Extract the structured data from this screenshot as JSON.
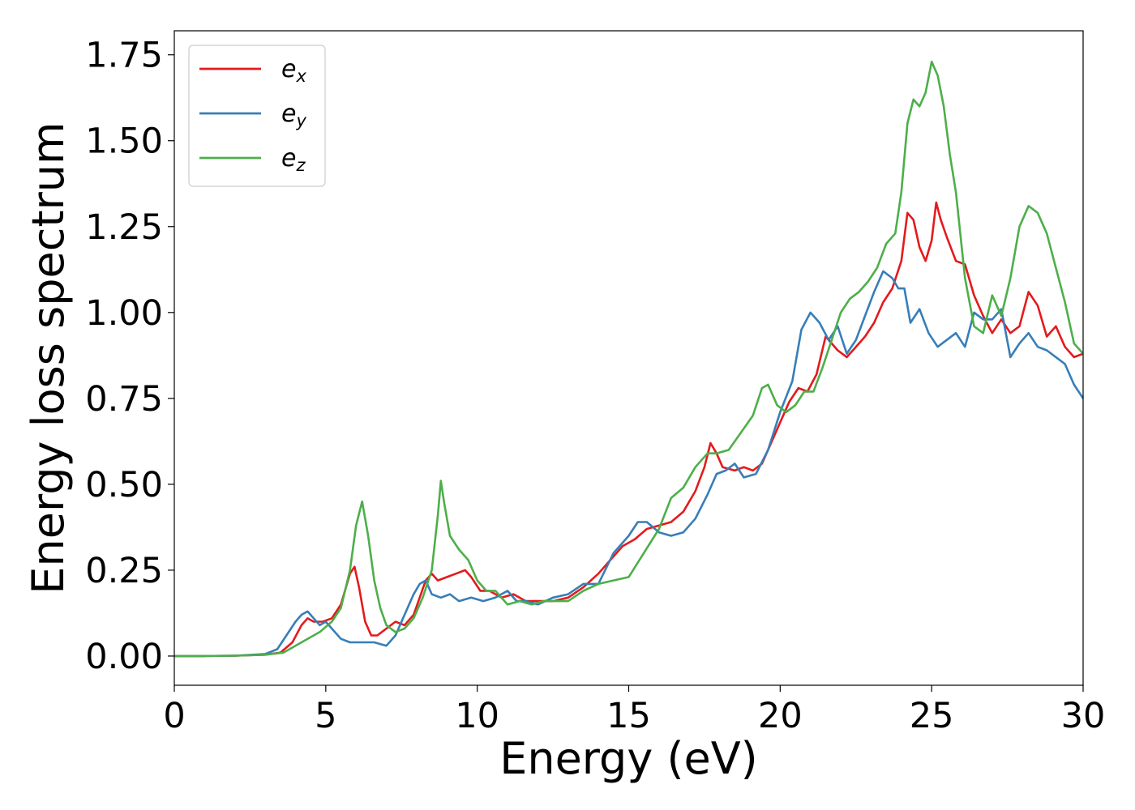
{
  "chart_data": {
    "type": "line",
    "title": "",
    "xlabel": "Energy (eV)",
    "ylabel": "Energy loss spectrum",
    "xlim": [
      0,
      30
    ],
    "ylim": [
      -0.085,
      1.82
    ],
    "xticks": [
      0,
      5,
      10,
      15,
      20,
      25,
      30
    ],
    "xtick_labels": [
      "0",
      "5",
      "10",
      "15",
      "20",
      "25",
      "30"
    ],
    "yticks": [
      0,
      0.25,
      0.5,
      0.75,
      1.0,
      1.25,
      1.5,
      1.75
    ],
    "ytick_labels": [
      "0.00",
      "0.25",
      "0.50",
      "0.75",
      "1.00",
      "1.25",
      "1.50",
      "1.75"
    ],
    "grid": false,
    "legend_position": "top-left",
    "series": [
      {
        "name": "e",
        "subscript": "x",
        "color": "#e41a1c",
        "x": [
          0,
          1,
          2,
          3,
          3.5,
          3.9,
          4.2,
          4.4,
          4.6,
          4.9,
          5.2,
          5.5,
          5.8,
          5.95,
          6.1,
          6.3,
          6.5,
          6.7,
          7.0,
          7.3,
          7.6,
          7.9,
          8.1,
          8.3,
          8.5,
          8.7,
          9.0,
          9.3,
          9.6,
          9.8,
          10.1,
          10.4,
          10.8,
          11.2,
          11.6,
          12.0,
          12.5,
          13.0,
          13.5,
          14.0,
          14.5,
          14.8,
          15.2,
          15.6,
          16.0,
          16.4,
          16.8,
          17.2,
          17.5,
          17.7,
          17.9,
          18.1,
          18.5,
          18.8,
          19.1,
          19.4,
          19.7,
          20.0,
          20.3,
          20.6,
          20.9,
          21.2,
          21.5,
          21.7,
          21.9,
          22.2,
          22.5,
          22.8,
          23.1,
          23.4,
          23.7,
          24.0,
          24.2,
          24.4,
          24.6,
          24.8,
          25.0,
          25.15,
          25.3,
          25.5,
          25.8,
          26.1,
          26.4,
          26.7,
          27.0,
          27.3,
          27.6,
          27.9,
          28.2,
          28.5,
          28.8,
          29.1,
          29.4,
          29.7,
          30.0
        ],
        "values": [
          0,
          0,
          0.001,
          0.004,
          0.01,
          0.04,
          0.09,
          0.11,
          0.1,
          0.1,
          0.11,
          0.15,
          0.24,
          0.26,
          0.2,
          0.1,
          0.06,
          0.06,
          0.08,
          0.1,
          0.09,
          0.12,
          0.17,
          0.22,
          0.24,
          0.22,
          0.23,
          0.24,
          0.25,
          0.23,
          0.19,
          0.19,
          0.17,
          0.18,
          0.16,
          0.16,
          0.16,
          0.17,
          0.2,
          0.24,
          0.29,
          0.32,
          0.34,
          0.37,
          0.38,
          0.39,
          0.42,
          0.48,
          0.55,
          0.62,
          0.59,
          0.55,
          0.54,
          0.55,
          0.54,
          0.56,
          0.62,
          0.68,
          0.74,
          0.78,
          0.77,
          0.82,
          0.93,
          0.91,
          0.89,
          0.87,
          0.9,
          0.93,
          0.97,
          1.03,
          1.07,
          1.15,
          1.29,
          1.27,
          1.19,
          1.15,
          1.21,
          1.32,
          1.27,
          1.22,
          1.15,
          1.14,
          1.05,
          0.99,
          0.94,
          0.98,
          0.94,
          0.96,
          1.06,
          1.02,
          0.93,
          0.96,
          0.9,
          0.87,
          0.88
        ]
      },
      {
        "name": "e",
        "subscript": "y",
        "color": "#377eb8",
        "x": [
          0,
          1,
          2,
          3,
          3.4,
          3.7,
          4.0,
          4.2,
          4.4,
          4.6,
          4.8,
          5.0,
          5.2,
          5.5,
          5.8,
          6.2,
          6.6,
          7.0,
          7.3,
          7.6,
          7.9,
          8.1,
          8.3,
          8.5,
          8.8,
          9.1,
          9.4,
          9.8,
          10.2,
          10.6,
          11.0,
          11.3,
          11.6,
          12.0,
          12.5,
          13.0,
          13.5,
          14.0,
          14.5,
          15.0,
          15.3,
          15.6,
          16.0,
          16.4,
          16.8,
          17.2,
          17.6,
          17.9,
          18.2,
          18.5,
          18.8,
          19.2,
          19.6,
          20.0,
          20.4,
          20.7,
          21.0,
          21.3,
          21.6,
          21.9,
          22.2,
          22.5,
          22.8,
          23.1,
          23.4,
          23.7,
          23.9,
          24.1,
          24.3,
          24.6,
          24.9,
          25.2,
          25.5,
          25.8,
          26.1,
          26.4,
          26.7,
          27.0,
          27.3,
          27.6,
          27.9,
          28.2,
          28.5,
          28.8,
          29.1,
          29.4,
          29.7,
          30.0
        ],
        "values": [
          0,
          0,
          0.001,
          0.006,
          0.02,
          0.06,
          0.1,
          0.12,
          0.13,
          0.11,
          0.09,
          0.1,
          0.08,
          0.05,
          0.04,
          0.04,
          0.04,
          0.03,
          0.06,
          0.12,
          0.18,
          0.21,
          0.22,
          0.18,
          0.17,
          0.18,
          0.16,
          0.17,
          0.16,
          0.17,
          0.19,
          0.16,
          0.16,
          0.15,
          0.17,
          0.18,
          0.21,
          0.21,
          0.3,
          0.35,
          0.39,
          0.39,
          0.36,
          0.35,
          0.36,
          0.4,
          0.47,
          0.53,
          0.54,
          0.56,
          0.52,
          0.53,
          0.6,
          0.71,
          0.8,
          0.95,
          1.0,
          0.97,
          0.92,
          0.96,
          0.88,
          0.92,
          0.99,
          1.06,
          1.12,
          1.1,
          1.07,
          1.07,
          0.97,
          1.01,
          0.94,
          0.9,
          0.92,
          0.94,
          0.9,
          1.0,
          0.98,
          0.98,
          1.01,
          0.87,
          0.91,
          0.94,
          0.9,
          0.89,
          0.87,
          0.85,
          0.79,
          0.75
        ]
      },
      {
        "name": "e",
        "subscript": "z",
        "color": "#4daf4a",
        "x": [
          0,
          1,
          2,
          3,
          3.6,
          4.0,
          4.4,
          4.8,
          5.2,
          5.5,
          5.8,
          6.0,
          6.2,
          6.4,
          6.6,
          6.8,
          7.0,
          7.3,
          7.6,
          7.9,
          8.2,
          8.5,
          8.7,
          8.8,
          8.9,
          9.1,
          9.4,
          9.7,
          10.0,
          10.3,
          10.6,
          11.0,
          11.4,
          11.8,
          12.2,
          12.6,
          13.0,
          13.5,
          14.0,
          14.5,
          15.0,
          15.5,
          16.0,
          16.4,
          16.8,
          17.2,
          17.6,
          17.9,
          18.3,
          18.7,
          19.1,
          19.4,
          19.6,
          19.9,
          20.2,
          20.5,
          20.8,
          21.1,
          21.4,
          21.7,
          22.0,
          22.3,
          22.6,
          22.9,
          23.2,
          23.5,
          23.8,
          24.0,
          24.2,
          24.4,
          24.6,
          24.8,
          25.0,
          25.2,
          25.4,
          25.6,
          25.8,
          26.1,
          26.4,
          26.7,
          27.0,
          27.3,
          27.6,
          27.9,
          28.2,
          28.5,
          28.8,
          29.1,
          29.4,
          29.7,
          30.0
        ],
        "values": [
          0,
          0,
          0.001,
          0.004,
          0.01,
          0.03,
          0.05,
          0.07,
          0.1,
          0.14,
          0.25,
          0.38,
          0.45,
          0.35,
          0.22,
          0.14,
          0.09,
          0.07,
          0.08,
          0.11,
          0.17,
          0.25,
          0.41,
          0.51,
          0.45,
          0.35,
          0.31,
          0.28,
          0.22,
          0.19,
          0.19,
          0.15,
          0.16,
          0.15,
          0.16,
          0.16,
          0.16,
          0.19,
          0.21,
          0.22,
          0.23,
          0.3,
          0.37,
          0.46,
          0.49,
          0.55,
          0.59,
          0.59,
          0.6,
          0.65,
          0.7,
          0.78,
          0.79,
          0.73,
          0.71,
          0.73,
          0.77,
          0.77,
          0.84,
          0.92,
          1.0,
          1.04,
          1.06,
          1.09,
          1.13,
          1.2,
          1.23,
          1.35,
          1.55,
          1.62,
          1.6,
          1.64,
          1.73,
          1.69,
          1.6,
          1.46,
          1.35,
          1.1,
          0.96,
          0.94,
          1.05,
          0.99,
          1.1,
          1.25,
          1.31,
          1.29,
          1.23,
          1.13,
          1.03,
          0.91,
          0.88
        ]
      }
    ]
  }
}
